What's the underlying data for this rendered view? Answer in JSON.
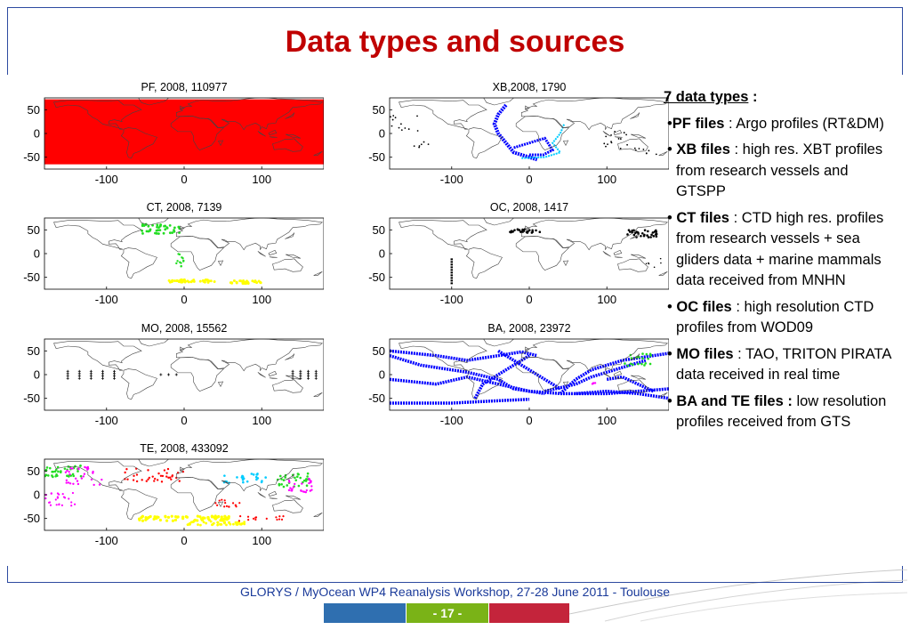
{
  "slide": {
    "title": "Data types and sources",
    "footer": "GLORYS / MyOcean WP4 Reanalysis Workshop, 27-28 June 2011 - Toulouse",
    "page_number": "- 17 -",
    "colors": {
      "title": "#c00000",
      "frame": "#2d4aa0",
      "bar_blue": "#2f6fb0",
      "bar_green": "#7ab317",
      "bar_red": "#c4243b"
    }
  },
  "panels": [
    {
      "id": "pf",
      "title": "PF, 2008, 110977",
      "yticks": [
        "50",
        "0",
        "-50"
      ],
      "xticks": [
        "-100",
        "0",
        "100"
      ],
      "pattern": "pf"
    },
    {
      "id": "xb",
      "title": "XB,2008, 1790",
      "yticks": [
        "50",
        "0",
        "-50"
      ],
      "xticks": [
        "-100",
        "0",
        "100"
      ],
      "pattern": "xb"
    },
    {
      "id": "ct",
      "title": "CT, 2008, 7139",
      "yticks": [
        "50",
        "0",
        "-50"
      ],
      "xticks": [
        "-100",
        "0",
        "100"
      ],
      "pattern": "ct"
    },
    {
      "id": "oc",
      "title": "OC, 2008, 1417",
      "yticks": [
        "50",
        "0",
        "-50"
      ],
      "xticks": [
        "-100",
        "0",
        "100"
      ],
      "pattern": "oc"
    },
    {
      "id": "mo",
      "title": "MO, 2008, 15562",
      "yticks": [
        "50",
        "0",
        "-50"
      ],
      "xticks": [
        "-100",
        "0",
        "100"
      ],
      "pattern": "mo"
    },
    {
      "id": "ba",
      "title": "BA, 2008, 23972",
      "yticks": [
        "50",
        "0",
        "-50"
      ],
      "xticks": [
        "-100",
        "0",
        "100"
      ],
      "pattern": "ba"
    },
    {
      "id": "te",
      "title": "TE, 2008, 433092",
      "yticks": [
        "50",
        "0",
        "-50"
      ],
      "xticks": [
        "-100",
        "0",
        "100"
      ],
      "pattern": "te"
    }
  ],
  "data_types": {
    "heading": "7 data types",
    "heading_colon": " :",
    "items": [
      {
        "bullet": "•",
        "name": "PF files",
        "desc": " : Argo profiles (RT&DM)"
      },
      {
        "bullet": "• ",
        "name": "XB files",
        "desc": " : high res. XBT profiles from research vessels and GTSPP"
      },
      {
        "bullet": "• ",
        "name": "CT files",
        "desc": " : CTD high res. profiles from research vessels + sea gliders data + marine mammals data received from MNHN"
      },
      {
        "bullet": "• ",
        "name": "OC files",
        "desc": " : high resolution CTD profiles from WOD09"
      },
      {
        "bullet": "• ",
        "name": "MO files",
        "desc": " : TAO, TRITON PIRATA data received in real time"
      },
      {
        "bullet": "• ",
        "name": "BA and TE files :",
        "desc": " low resolution profiles received from GTS"
      }
    ]
  }
}
